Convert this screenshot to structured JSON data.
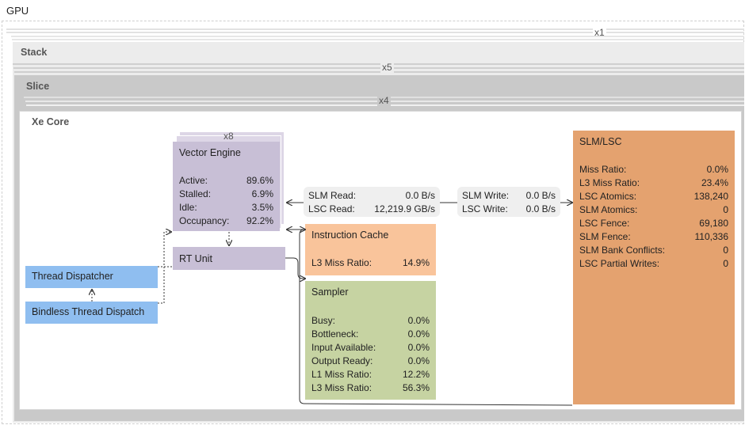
{
  "gpu": {
    "title": "GPU",
    "multiplier": "x1"
  },
  "stack": {
    "title": "Stack",
    "multiplier": "x5"
  },
  "slice": {
    "title": "Slice",
    "multiplier": "x4"
  },
  "xe_core": {
    "title": "Xe Core",
    "vector_engine": {
      "multiplier": "x8",
      "title": "Vector Engine",
      "rows": [
        {
          "label": "Active:",
          "value": "89.6%"
        },
        {
          "label": "Stalled:",
          "value": "6.9%"
        },
        {
          "label": "Idle:",
          "value": "3.5%"
        },
        {
          "label": "Occupancy:",
          "value": "92.2%"
        }
      ]
    },
    "rt_unit": {
      "title": "RT Unit"
    },
    "thread_dispatcher": {
      "title": "Thread Dispatcher"
    },
    "bindless_thread_dispatch": {
      "title": "Bindless Thread Dispatch"
    },
    "slm_lsc_read": [
      {
        "label": "SLM Read:",
        "value": "0.0 B/s"
      },
      {
        "label": "LSC Read:",
        "value": "12,219.9 GB/s"
      }
    ],
    "slm_lsc_write": [
      {
        "label": "SLM Write:",
        "value": "0.0 B/s"
      },
      {
        "label": "LSC Write:",
        "value": "0.0 B/s"
      }
    ],
    "instruction_cache": {
      "title": "Instruction Cache",
      "rows": [
        {
          "label": "L3 Miss Ratio:",
          "value": "14.9%"
        }
      ]
    },
    "sampler": {
      "title": "Sampler",
      "rows": [
        {
          "label": "Busy:",
          "value": "0.0%"
        },
        {
          "label": "Bottleneck:",
          "value": "0.0%"
        },
        {
          "label": "Input Available:",
          "value": "0.0%"
        },
        {
          "label": "Output Ready:",
          "value": "0.0%"
        },
        {
          "label": "L1 Miss Ratio:",
          "value": "12.2%"
        },
        {
          "label": "L3 Miss Ratio:",
          "value": "56.3%"
        }
      ]
    },
    "slm_lsc": {
      "title": "SLM/LSC",
      "rows": [
        {
          "label": "Miss Ratio:",
          "value": "0.0%"
        },
        {
          "label": "L3 Miss Ratio:",
          "value": "23.4%"
        },
        {
          "label": "LSC Atomics:",
          "value": "138,240"
        },
        {
          "label": "SLM Atomics:",
          "value": "0"
        },
        {
          "label": "LSC Fence:",
          "value": "69,180"
        },
        {
          "label": "SLM Fence:",
          "value": "110,336"
        },
        {
          "label": "SLM Bank Conflicts:",
          "value": "0"
        },
        {
          "label": "LSC Partial Writes:",
          "value": "0"
        }
      ]
    }
  },
  "colors": {
    "vector_engine": "#c8bfd6",
    "dispatcher": "#8fbef0",
    "instruction_cache": "#f9c49b",
    "sampler": "#c6d3a2",
    "slm_lsc": "#e4a26f"
  }
}
